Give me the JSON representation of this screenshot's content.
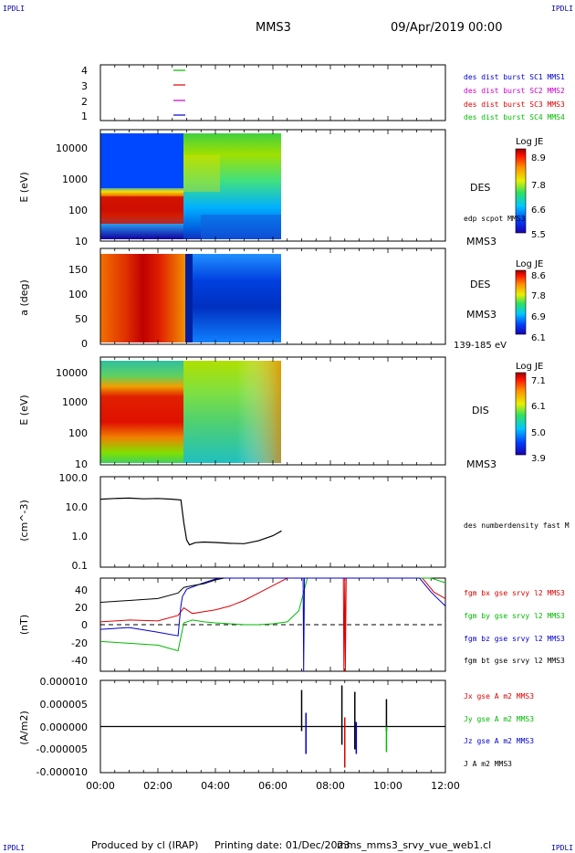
{
  "header": {
    "corner_label": "IPDLI",
    "title": "MMS3",
    "date": "09/Apr/2019 00:00"
  },
  "footer": {
    "producer": "Produced by cl (IRAP)",
    "printing": "Printing date: 01/Dec/2023",
    "filename": "mms_mms3_srvy_vue_web1.cl"
  },
  "chart_data": [
    {
      "type": "scatter",
      "panel": "spacecraft",
      "xlim": [
        0,
        12
      ],
      "y_ticks": [
        "4",
        "3",
        "2",
        "1"
      ],
      "legend": [
        {
          "text": "des dist burst SC1 MMS1",
          "color": "#0000cc"
        },
        {
          "text": "des dist burst SC2 MMS2",
          "color": "#cc00cc"
        },
        {
          "text": "des dist burst SC3 MMS3",
          "color": "#dd0000"
        },
        {
          "text": "des dist burst SC4 MMS4",
          "color": "#00bb00"
        }
      ]
    },
    {
      "type": "heatmap",
      "panel": "des_energy",
      "ylabel": "E (eV)",
      "y_ticks": [
        "10000",
        "1000",
        "100",
        "10"
      ],
      "ylim": [
        10,
        30000
      ],
      "yscale": "log",
      "label": "DES",
      "extra_label": "edp scpot MMS3",
      "sc": "MMS3",
      "colorbar": {
        "title": "Log JE",
        "ticks": [
          "8.9",
          "7.8",
          "6.6",
          "5.5"
        ]
      },
      "data_range_hours": [
        0,
        6.3
      ]
    },
    {
      "type": "heatmap",
      "panel": "des_pitch",
      "ylabel": "a (deg)",
      "y_ticks": [
        "150",
        "100",
        "50",
        "0"
      ],
      "ylim": [
        0,
        180
      ],
      "label": "DES",
      "sc": "MMS3",
      "energy_range": "139-185 eV",
      "colorbar": {
        "title": "Log JE",
        "ticks": [
          "8.6",
          "7.8",
          "6.9",
          "6.1"
        ]
      },
      "data_range_hours": [
        0,
        6.3
      ]
    },
    {
      "type": "heatmap",
      "panel": "dis_energy",
      "ylabel": "E (eV)",
      "y_ticks": [
        "10000",
        "1000",
        "100",
        "10"
      ],
      "ylim": [
        10,
        30000
      ],
      "yscale": "log",
      "label": "DIS",
      "sc": "MMS3",
      "colorbar": {
        "title": "Log JE",
        "ticks": [
          "7.1",
          "6.1",
          "5.0",
          "3.9"
        ]
      },
      "data_range_hours": [
        0,
        6.3
      ]
    },
    {
      "type": "line",
      "panel": "density",
      "ylabel": "(cm^-3)",
      "y_ticks": [
        "100.0",
        "10.0",
        "1.0",
        "0.1"
      ],
      "ylim": [
        0.1,
        100
      ],
      "yscale": "log",
      "series": [
        {
          "name": "des numberdensity fast M",
          "color": "#000000",
          "x": [
            0,
            0.5,
            1,
            1.5,
            2,
            2.5,
            2.8,
            2.9,
            3.0,
            3.1,
            3.3,
            3.6,
            4.0,
            4.5,
            5.0,
            5.5,
            6.0,
            6.3
          ],
          "y": [
            18,
            19,
            19.5,
            18.5,
            19,
            18,
            17,
            3.0,
            0.8,
            0.55,
            0.65,
            0.68,
            0.66,
            0.62,
            0.6,
            0.75,
            1.1,
            1.6
          ]
        }
      ]
    },
    {
      "type": "line",
      "panel": "magnetic_field",
      "ylabel": "(nT)",
      "y_ticks": [
        "40",
        "20",
        "0",
        "-20",
        "-40"
      ],
      "ylim": [
        -50,
        50
      ],
      "series": [
        {
          "name": "fgm bx gse srvy l2 MMS3",
          "color": "#dd0000",
          "x": [
            0,
            1,
            2,
            2.7,
            2.9,
            3.2,
            3.6,
            4.0,
            4.5,
            5.0,
            5.5,
            6.0,
            6.5,
            8.45,
            8.47,
            8.5,
            8.52,
            8.55,
            11.2,
            11.6,
            12
          ],
          "y": [
            3,
            5,
            4,
            10,
            18,
            12,
            14,
            16,
            20,
            26,
            34,
            42,
            50,
            50,
            -50,
            50,
            -50,
            50,
            50,
            35,
            28
          ]
        },
        {
          "name": "fgm by gse srvy l2 MMS3",
          "color": "#00bb00",
          "x": [
            0,
            1,
            2,
            2.7,
            2.9,
            3.2,
            3.6,
            4.0,
            4.5,
            5.0,
            5.5,
            6.0,
            6.5,
            6.9,
            7.2,
            11.5,
            12
          ],
          "y": [
            -18,
            -20,
            -22,
            -28,
            2,
            5,
            3,
            2,
            1,
            0,
            0,
            1,
            3,
            15,
            50,
            50,
            45
          ]
        },
        {
          "name": "fgm bz gse srvy l2 MMS3",
          "color": "#0000cc",
          "x": [
            0,
            1,
            2,
            2.7,
            2.8,
            2.85,
            3.0,
            3.5,
            4.0,
            4.2,
            7.05,
            7.07,
            7.1,
            11.1,
            11.5,
            12
          ],
          "y": [
            -5,
            -3,
            -8,
            -12,
            20,
            30,
            38,
            44,
            49,
            50,
            50,
            -50,
            50,
            50,
            35,
            20
          ]
        },
        {
          "name": "fgm bt gse srvy l2 MMS3",
          "color": "#000000",
          "x": [
            0,
            1,
            2,
            2.7,
            2.9,
            3.2,
            3.6,
            4.0,
            4.3
          ],
          "y": [
            24,
            26,
            28,
            34,
            40,
            42,
            44,
            48,
            50
          ]
        }
      ]
    },
    {
      "type": "line",
      "panel": "current",
      "ylabel": "(A/m2)",
      "y_ticks": [
        "0.000010",
        "0.000005",
        "0.000000",
        "-0.000005",
        "-0.000010"
      ],
      "ylim": [
        -1e-05,
        1e-05
      ],
      "xlabel_ticks": [
        "00:00",
        "02:00",
        "04:00",
        "06:00",
        "08:00",
        "10:00",
        "12:00"
      ],
      "series": [
        {
          "name": "Jx gse A m2 MMS3",
          "color": "#dd0000"
        },
        {
          "name": "Jy gse A m2 MMS3",
          "color": "#00bb00"
        },
        {
          "name": "Jz gse A m2 MMS3",
          "color": "#0000cc"
        },
        {
          "name": "J A m2 MMS3",
          "color": "#000000"
        }
      ]
    }
  ]
}
